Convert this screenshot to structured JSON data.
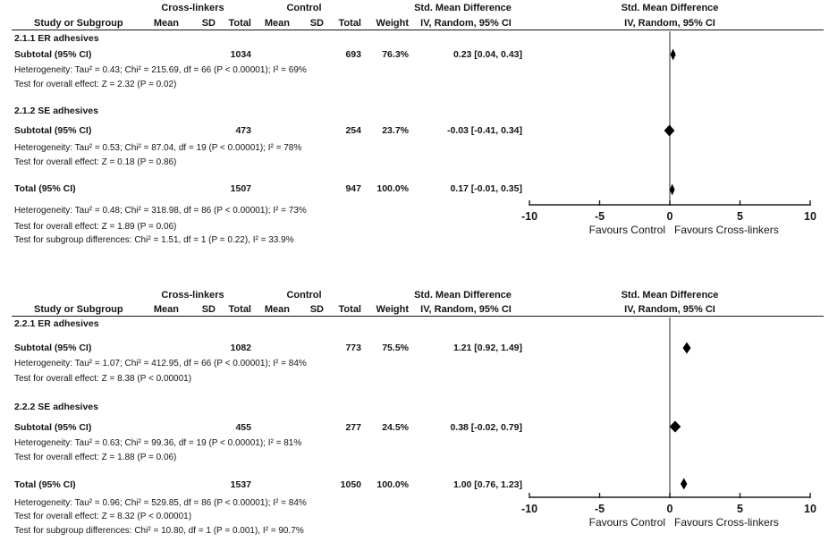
{
  "plots": [
    {
      "headers": {
        "group": {
          "cross_linkers": "Cross-linkers",
          "control": "Control",
          "smd": "Std. Mean Difference",
          "smd_graph": "Std. Mean Difference"
        },
        "cols": {
          "study": "Study or Subgroup",
          "mean_cl": "Mean",
          "sd_cl": "SD",
          "total_cl": "Total",
          "mean_ctl": "Mean",
          "sd_ctl": "SD",
          "total_ctl": "Total",
          "weight": "Weight",
          "ci": "IV, Random, 95% CI",
          "ci_graph": "IV, Random, 95% CI"
        }
      },
      "sections": [
        {
          "title": "2.1.1 ER adhesives",
          "subtotal": {
            "label": "Subtotal (95% CI)",
            "total_cl": "1034",
            "total_ctl": "693",
            "weight": "76.3%",
            "ci_text": "0.23 [0.04, 0.43]"
          },
          "heterogeneity": "Heterogeneity: Tau² = 0.43; Chi² = 215.69, df = 66 (P < 0.00001); I² = 69%",
          "overall_effect": "Test for overall effect: Z = 2.32 (P = 0.02)"
        },
        {
          "title": "2.1.2 SE adhesives",
          "subtotal": {
            "label": "Subtotal (95% CI)",
            "total_cl": "473",
            "total_ctl": "254",
            "weight": "23.7%",
            "ci_text": "-0.03 [-0.41, 0.34]"
          },
          "heterogeneity": "Heterogeneity: Tau² = 0.53; Chi² = 87.04, df = 19 (P < 0.00001); I² = 78%",
          "overall_effect": "Test for overall effect: Z = 0.18 (P = 0.86)"
        }
      ],
      "total": {
        "label": "Total (95% CI)",
        "total_cl": "1507",
        "total_ctl": "947",
        "weight": "100.0%",
        "ci_text": "0.17 [-0.01, 0.35]",
        "heterogeneity": "Heterogeneity: Tau² = 0.48; Chi² = 318.98, df = 86 (P < 0.00001); I² = 73%",
        "overall_effect": "Test for overall effect: Z = 1.89 (P = 0.06)",
        "subgroup_differences": "Test for subgroup differences: Chi² = 1.51, df = 1 (P = 0.22), I² = 33.9%"
      },
      "axis": {
        "min": -10,
        "max": 10,
        "ticks": [
          -10,
          -5,
          0,
          5,
          10
        ],
        "tick_labels": [
          "-10",
          "-5",
          "0",
          "5",
          "10"
        ],
        "favours_left": "Favours Control",
        "favours_right": "Favours Cross-linkers"
      },
      "diamonds": [
        {
          "est": 0.23,
          "lo": 0.04,
          "hi": 0.43
        },
        {
          "est": -0.03,
          "lo": -0.41,
          "hi": 0.34
        },
        {
          "est": 0.17,
          "lo": -0.01,
          "hi": 0.35
        }
      ]
    },
    {
      "headers": {
        "group": {
          "cross_linkers": "Cross-linkers",
          "control": "Control",
          "smd": "Std. Mean Difference",
          "smd_graph": "Std. Mean Difference"
        },
        "cols": {
          "study": "Study or Subgroup",
          "mean_cl": "Mean",
          "sd_cl": "SD",
          "total_cl": "Total",
          "mean_ctl": "Mean",
          "sd_ctl": "SD",
          "total_ctl": "Total",
          "weight": "Weight",
          "ci": "IV, Random, 95% CI",
          "ci_graph": "IV, Random, 95% CI"
        }
      },
      "sections": [
        {
          "title": "2.2.1 ER adhesives",
          "subtotal": {
            "label": "Subtotal (95% CI)",
            "total_cl": "1082",
            "total_ctl": "773",
            "weight": "75.5%",
            "ci_text": "1.21 [0.92, 1.49]"
          },
          "heterogeneity": "Heterogeneity: Tau² = 1.07; Chi² = 412.95, df = 66 (P < 0.00001); I² = 84%",
          "overall_effect": "Test for overall effect: Z = 8.38 (P < 0.00001)"
        },
        {
          "title": "2.2.2 SE adhesives",
          "subtotal": {
            "label": "Subtotal (95% CI)",
            "total_cl": "455",
            "total_ctl": "277",
            "weight": "24.5%",
            "ci_text": "0.38 [-0.02, 0.79]"
          },
          "heterogeneity": "Heterogeneity: Tau² = 0.63; Chi² = 99.36, df = 19 (P < 0.00001); I² = 81%",
          "overall_effect": "Test for overall effect: Z = 1.88 (P = 0.06)"
        }
      ],
      "total": {
        "label": "Total (95% CI)",
        "total_cl": "1537",
        "total_ctl": "1050",
        "weight": "100.0%",
        "ci_text": "1.00 [0.76, 1.23]",
        "heterogeneity": "Heterogeneity: Tau² = 0.96; Chi² = 529.85, df = 86 (P < 0.00001); I² = 84%",
        "overall_effect": "Test for overall effect: Z = 8.32 (P < 0.00001)",
        "subgroup_differences": "Test for subgroup differences: Chi² = 10.80, df = 1 (P = 0.001), I² = 90.7%"
      },
      "axis": {
        "min": -10,
        "max": 10,
        "ticks": [
          -10,
          -5,
          0,
          5,
          10
        ],
        "tick_labels": [
          "-10",
          "-5",
          "0",
          "5",
          "10"
        ],
        "favours_left": "Favours Control",
        "favours_right": "Favours Cross-linkers"
      },
      "diamonds": [
        {
          "est": 1.21,
          "lo": 0.92,
          "hi": 1.49
        },
        {
          "est": 0.38,
          "lo": -0.02,
          "hi": 0.79
        },
        {
          "est": 1.0,
          "lo": 0.76,
          "hi": 1.23
        }
      ]
    }
  ],
  "chart_data": [
    {
      "type": "scatter",
      "subtype": "forest_plot_meta_analysis",
      "title": "Std. Mean Difference — IV, Random, 95% CI",
      "xlim": [
        -10,
        10
      ],
      "xticks": [
        -10,
        -5,
        0,
        5,
        10
      ],
      "x_annotation_left": "Favours Control",
      "x_annotation_right": "Favours Cross-linkers",
      "rows": [
        {
          "group": "2.1.1 ER adhesives",
          "label": "Subtotal (95% CI)",
          "crosslinkers_total": 1034,
          "control_total": 693,
          "weight_pct": 76.3,
          "smd": 0.23,
          "ci_low": 0.04,
          "ci_high": 0.43,
          "heterogeneity": "Tau² = 0.43; Chi² = 215.69, df = 66 (P < 0.00001); I² = 69%",
          "overall_effect": "Z = 2.32 (P = 0.02)"
        },
        {
          "group": "2.1.2 SE adhesives",
          "label": "Subtotal (95% CI)",
          "crosslinkers_total": 473,
          "control_total": 254,
          "weight_pct": 23.7,
          "smd": -0.03,
          "ci_low": -0.41,
          "ci_high": 0.34,
          "heterogeneity": "Tau² = 0.53; Chi² = 87.04, df = 19 (P < 0.00001); I² = 78%",
          "overall_effect": "Z = 0.18 (P = 0.86)"
        },
        {
          "group": "Total",
          "label": "Total (95% CI)",
          "crosslinkers_total": 1507,
          "control_total": 947,
          "weight_pct": 100.0,
          "smd": 0.17,
          "ci_low": -0.01,
          "ci_high": 0.35,
          "heterogeneity": "Tau² = 0.48; Chi² = 318.98, df = 86 (P < 0.00001); I² = 73%",
          "overall_effect": "Z = 1.89 (P = 0.06)",
          "subgroup_differences": "Chi² = 1.51, df = 1 (P = 0.22), I² = 33.9%"
        }
      ]
    },
    {
      "type": "scatter",
      "subtype": "forest_plot_meta_analysis",
      "title": "Std. Mean Difference — IV, Random, 95% CI",
      "xlim": [
        -10,
        10
      ],
      "xticks": [
        -10,
        -5,
        0,
        5,
        10
      ],
      "x_annotation_left": "Favours Control",
      "x_annotation_right": "Favours Cross-linkers",
      "rows": [
        {
          "group": "2.2.1 ER adhesives",
          "label": "Subtotal (95% CI)",
          "crosslinkers_total": 1082,
          "control_total": 773,
          "weight_pct": 75.5,
          "smd": 1.21,
          "ci_low": 0.92,
          "ci_high": 1.49,
          "heterogeneity": "Tau² = 1.07; Chi² = 412.95, df = 66 (P < 0.00001); I² = 84%",
          "overall_effect": "Z = 8.38 (P < 0.00001)"
        },
        {
          "group": "2.2.2 SE adhesives",
          "label": "Subtotal (95% CI)",
          "crosslinkers_total": 455,
          "control_total": 277,
          "weight_pct": 24.5,
          "smd": 0.38,
          "ci_low": -0.02,
          "ci_high": 0.79,
          "heterogeneity": "Tau² = 0.63; Chi² = 99.36, df = 19 (P < 0.00001); I² = 81%",
          "overall_effect": "Z = 1.88 (P = 0.06)"
        },
        {
          "group": "Total",
          "label": "Total (95% CI)",
          "crosslinkers_total": 1537,
          "control_total": 1050,
          "weight_pct": 100.0,
          "smd": 1.0,
          "ci_low": 0.76,
          "ci_high": 1.23,
          "heterogeneity": "Tau² = 0.96; Chi² = 529.85, df = 86 (P < 0.00001); I² = 84%",
          "overall_effect": "Z = 8.32 (P < 0.00001)",
          "subgroup_differences": "Chi² = 10.80, df = 1 (P = 0.001), I² = 90.7%"
        }
      ]
    }
  ]
}
